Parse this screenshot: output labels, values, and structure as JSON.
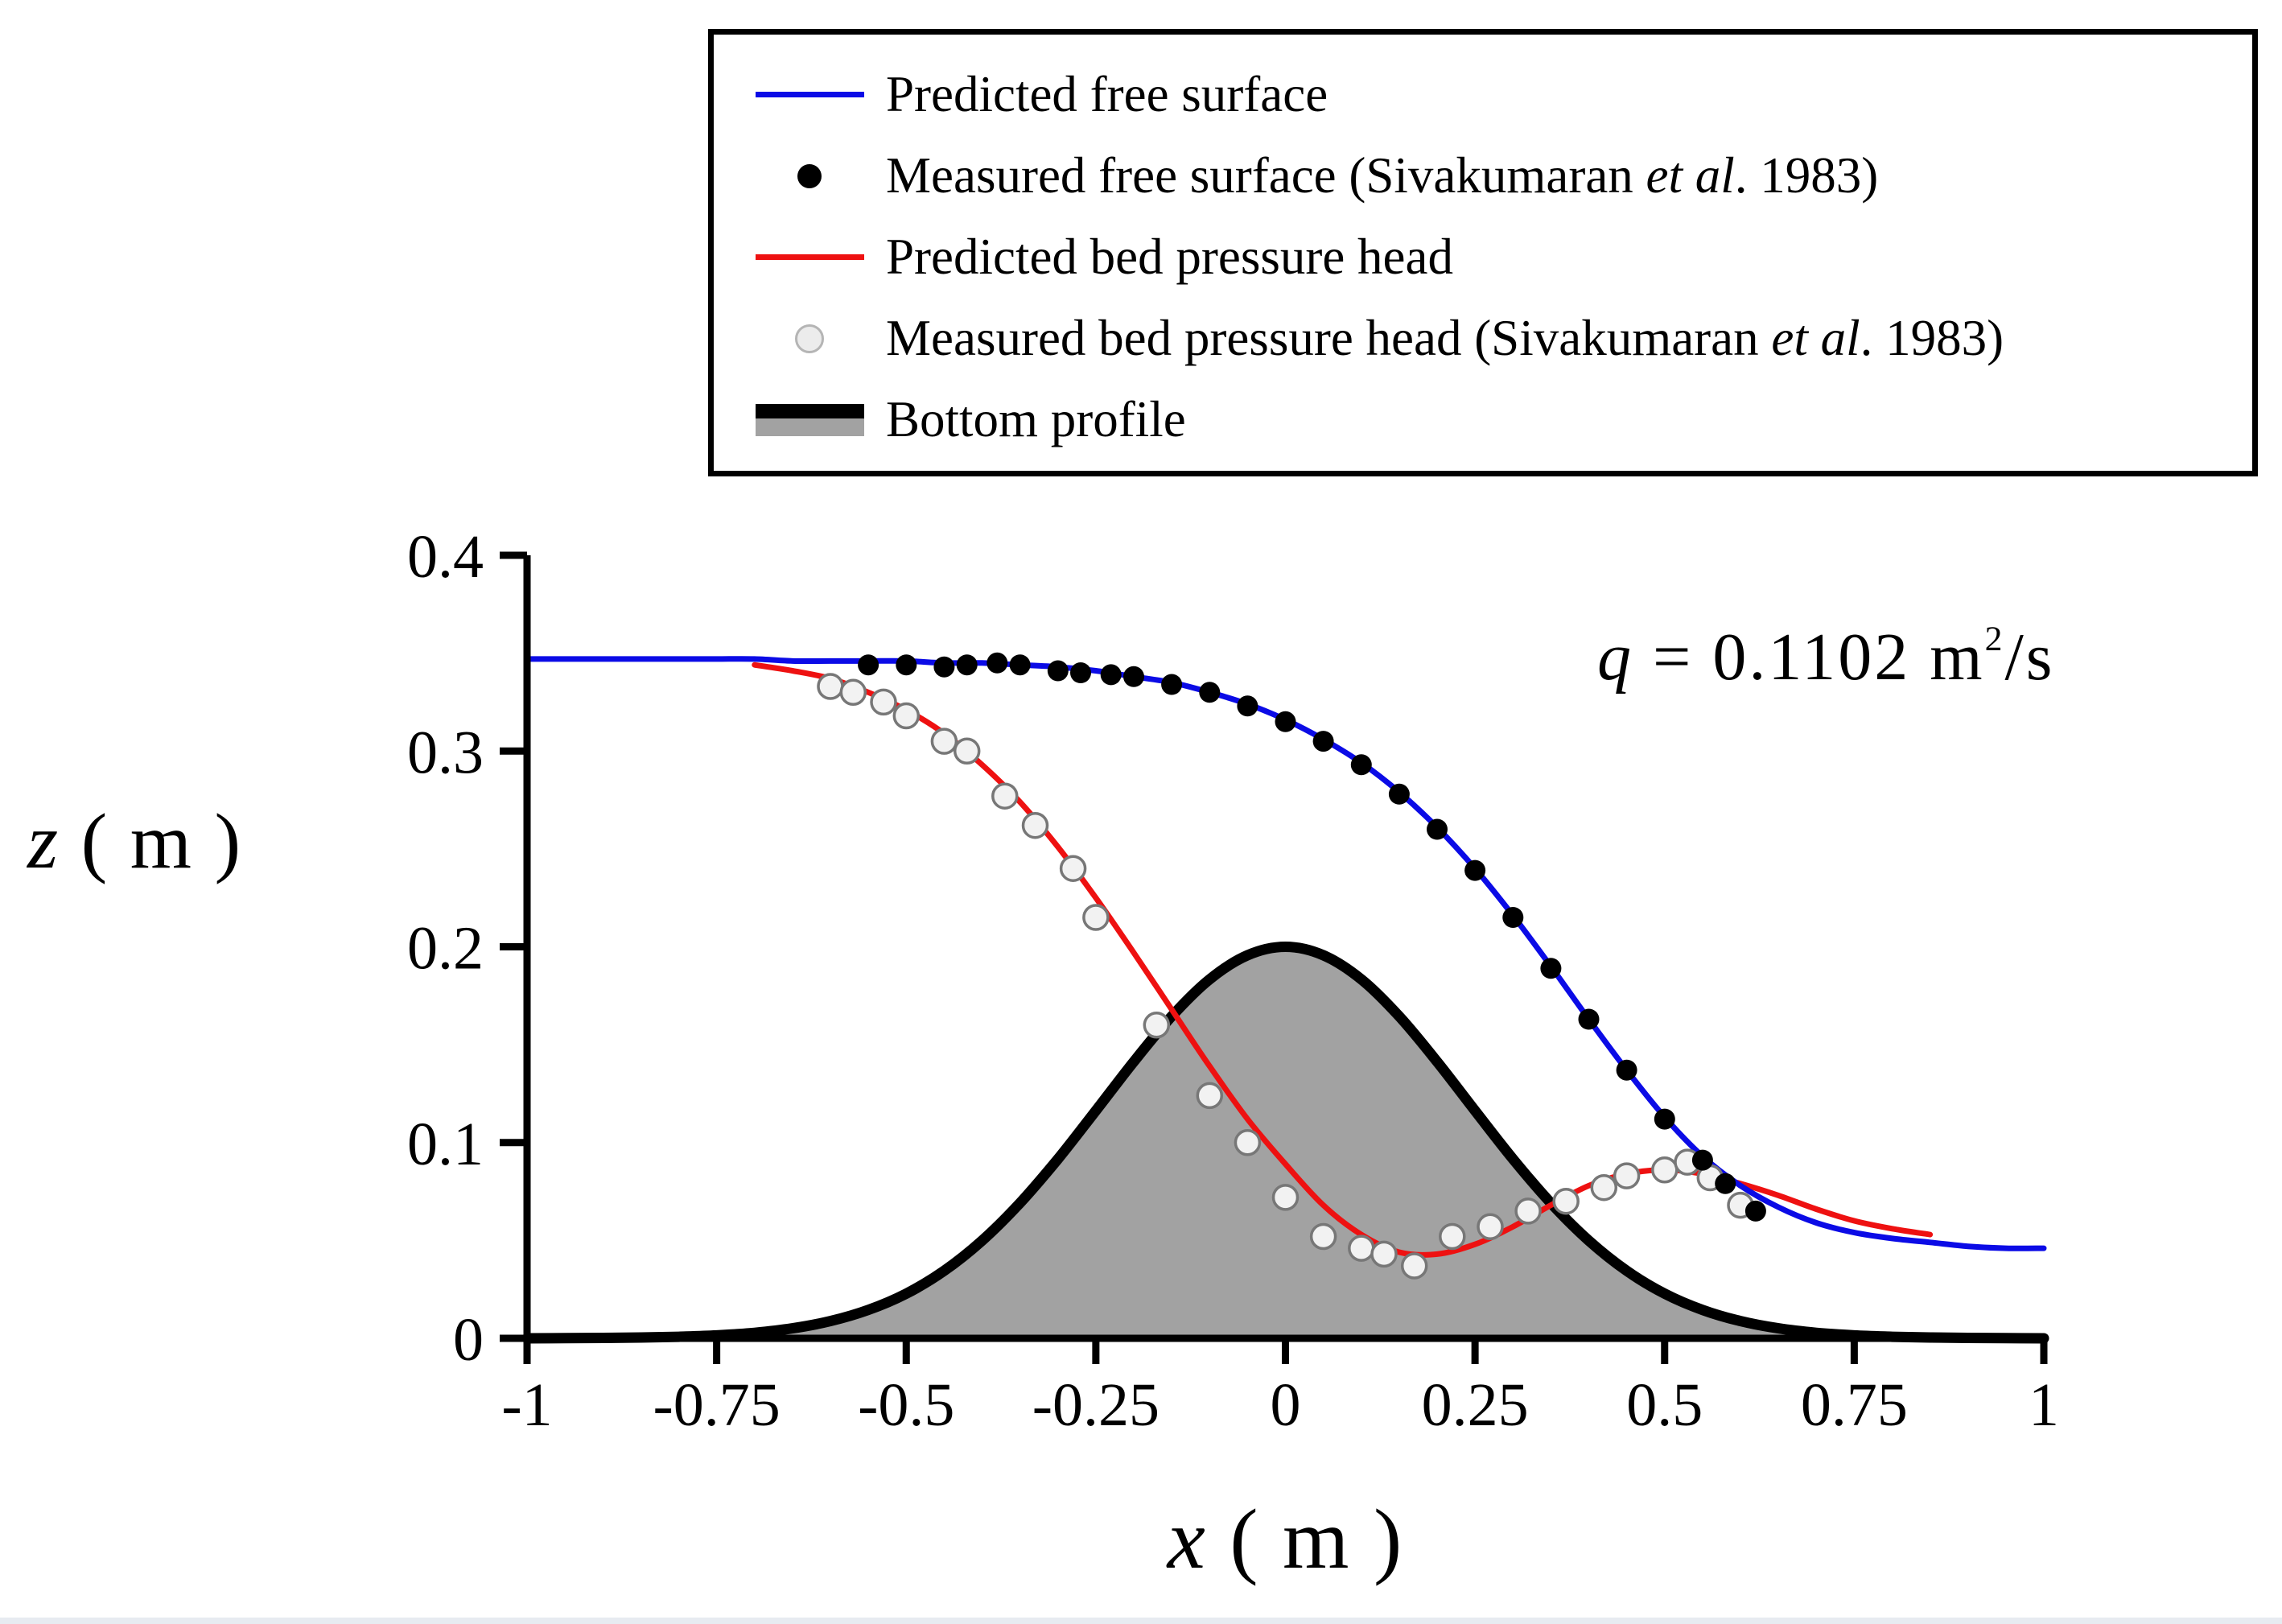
{
  "legend": {
    "items": [
      {
        "type": "line",
        "color": "#0b0be6",
        "fill": "",
        "stroke": "",
        "label_pre": "Predicted free surface",
        "label_it": "",
        "label_post": ""
      },
      {
        "type": "dot",
        "color": "#000000",
        "fill": "",
        "stroke": "",
        "label_pre": "Measured free surface (Sivakumaran ",
        "label_it": "et al",
        "label_post": ". 1983)"
      },
      {
        "type": "line",
        "color": "#ee1111",
        "fill": "",
        "stroke": "",
        "label_pre": "Predicted bed pressure head",
        "label_it": "",
        "label_post": ""
      },
      {
        "type": "dot",
        "color": "#ececec",
        "fill": "",
        "stroke": "#b5b5b5",
        "label_pre": "Measured bed pressure head (Sivakumaran ",
        "label_it": "et al",
        "label_post": ". 1983)"
      },
      {
        "type": "band",
        "color": "#000000",
        "fill": "#a2a2a2",
        "stroke": "",
        "label_pre": "Bottom profile",
        "label_it": "",
        "label_post": ""
      }
    ]
  },
  "chart_data": {
    "type": "line",
    "title": "",
    "xlabel": "x (m)",
    "ylabel": "z (m)",
    "xlabel_parts": [
      "x",
      " ( m )"
    ],
    "ylabel_parts": [
      "z",
      " ( m )"
    ],
    "annotation": "q = 0.1102 m²/s",
    "annotation_parts": [
      "q",
      " = 0.1102 m",
      "2",
      "/s"
    ],
    "xlim": [
      -1,
      1
    ],
    "ylim": [
      0,
      0.4
    ],
    "xticks": [
      -1,
      -0.75,
      -0.5,
      -0.25,
      0,
      0.25,
      0.5,
      0.75,
      1
    ],
    "xtick_labels": [
      "-1",
      "-0.75",
      "-0.5",
      "-0.25",
      "0",
      "0.25",
      "0.5",
      "0.75",
      "1"
    ],
    "yticks": [
      0,
      0.1,
      0.2,
      0.3,
      0.4
    ],
    "ytick_labels": [
      "0",
      "0.1",
      "0.2",
      "0.3",
      "0.4"
    ],
    "grid": false,
    "legend_position": "top",
    "series": [
      {
        "id": "bottom-profile",
        "name": "Bottom profile",
        "type": "area",
        "color": "#000000",
        "fill": "#a2a2a2",
        "x": [
          -1,
          -0.95,
          -0.9,
          -0.85,
          -0.8,
          -0.75,
          -0.7,
          -0.65,
          -0.6,
          -0.55,
          -0.5,
          -0.45,
          -0.4,
          -0.35,
          -0.3,
          -0.25,
          -0.2,
          -0.15,
          -0.1,
          -0.05,
          0,
          0.05,
          0.1,
          0.15,
          0.2,
          0.25,
          0.3,
          0.35,
          0.4,
          0.45,
          0.5,
          0.55,
          0.6,
          0.65,
          0.7,
          0.75,
          0.8,
          0.85,
          0.9,
          0.95,
          1
        ],
        "y": [
          0,
          0.0001,
          0.0002,
          0.0004,
          0.0008,
          0.0015,
          0.0028,
          0.0051,
          0.0088,
          0.0145,
          0.0228,
          0.0345,
          0.0499,
          0.0691,
          0.0916,
          0.1163,
          0.1413,
          0.1645,
          0.1834,
          0.1957,
          0.2,
          0.1957,
          0.1834,
          0.1645,
          0.1413,
          0.1163,
          0.0916,
          0.0691,
          0.0499,
          0.0345,
          0.0228,
          0.0145,
          0.0088,
          0.0051,
          0.0028,
          0.0015,
          0.0008,
          0.0004,
          0.0002,
          0.0001,
          0
        ]
      },
      {
        "id": "predicted-bed-pressure-head",
        "name": "Predicted bed pressure head",
        "type": "line",
        "color": "#ee1111",
        "x": [
          -0.7,
          -0.65,
          -0.6,
          -0.55,
          -0.5,
          -0.45,
          -0.4,
          -0.35,
          -0.3,
          -0.25,
          -0.2,
          -0.15,
          -0.1,
          -0.05,
          0,
          0.05,
          0.1,
          0.15,
          0.2,
          0.25,
          0.3,
          0.35,
          0.4,
          0.45,
          0.5,
          0.55,
          0.6,
          0.65,
          0.7,
          0.75,
          0.8,
          0.85
        ],
        "y": [
          0.344,
          0.341,
          0.337,
          0.33,
          0.321,
          0.309,
          0.293,
          0.274,
          0.251,
          0.225,
          0.197,
          0.168,
          0.139,
          0.112,
          0.089,
          0.068,
          0.053,
          0.044,
          0.043,
          0.048,
          0.057,
          0.068,
          0.078,
          0.084,
          0.086,
          0.084,
          0.079,
          0.073,
          0.066,
          0.06,
          0.056,
          0.053
        ]
      },
      {
        "id": "predicted-free-surface",
        "name": "Predicted free surface",
        "type": "line",
        "color": "#0b0be6",
        "x": [
          -1,
          -0.95,
          -0.9,
          -0.85,
          -0.8,
          -0.75,
          -0.7,
          -0.65,
          -0.6,
          -0.55,
          -0.5,
          -0.45,
          -0.4,
          -0.35,
          -0.3,
          -0.25,
          -0.2,
          -0.15,
          -0.1,
          -0.05,
          0,
          0.05,
          0.1,
          0.15,
          0.2,
          0.25,
          0.3,
          0.35,
          0.4,
          0.45,
          0.5,
          0.55,
          0.6,
          0.65,
          0.7,
          0.75,
          0.8,
          0.85,
          0.9,
          0.95,
          1
        ],
        "y": [
          0.347,
          0.347,
          0.347,
          0.347,
          0.347,
          0.347,
          0.347,
          0.346,
          0.346,
          0.346,
          0.346,
          0.345,
          0.345,
          0.344,
          0.343,
          0.341,
          0.338,
          0.335,
          0.33,
          0.324,
          0.316,
          0.306,
          0.294,
          0.279,
          0.261,
          0.24,
          0.216,
          0.19,
          0.163,
          0.137,
          0.113,
          0.093,
          0.078,
          0.067,
          0.059,
          0.054,
          0.051,
          0.049,
          0.047,
          0.046,
          0.046
        ]
      },
      {
        "id": "measured-bed-pressure-head",
        "name": "Measured bed pressure head (Sivakumaran et al. 1983)",
        "type": "scatter-open",
        "color": "#f2f2f2",
        "stroke": "#777777",
        "x": [
          -0.6,
          -0.57,
          -0.53,
          -0.5,
          -0.45,
          -0.42,
          -0.37,
          -0.33,
          -0.28,
          -0.25,
          -0.17,
          -0.1,
          -0.05,
          0,
          0.05,
          0.1,
          0.13,
          0.17,
          0.22,
          0.27,
          0.32,
          0.37,
          0.42,
          0.45,
          0.5,
          0.53,
          0.56,
          0.6
        ],
        "y": [
          0.333,
          0.33,
          0.325,
          0.318,
          0.305,
          0.3,
          0.277,
          0.262,
          0.24,
          0.215,
          0.16,
          0.124,
          0.1,
          0.072,
          0.052,
          0.046,
          0.043,
          0.037,
          0.052,
          0.057,
          0.065,
          0.07,
          0.077,
          0.083,
          0.086,
          0.09,
          0.082,
          0.068
        ]
      },
      {
        "id": "measured-free-surface",
        "name": "Measured free surface (Sivakumaran et al. 1983)",
        "type": "scatter",
        "color": "#000000",
        "stroke": "",
        "x": [
          -0.55,
          -0.5,
          -0.45,
          -0.42,
          -0.38,
          -0.35,
          -0.3,
          -0.27,
          -0.23,
          -0.2,
          -0.15,
          -0.1,
          -0.05,
          0,
          0.05,
          0.1,
          0.15,
          0.2,
          0.25,
          0.3,
          0.35,
          0.4,
          0.45,
          0.5,
          0.55,
          0.58,
          0.62
        ],
        "y": [
          0.344,
          0.344,
          0.343,
          0.344,
          0.345,
          0.344,
          0.341,
          0.34,
          0.339,
          0.338,
          0.334,
          0.33,
          0.323,
          0.315,
          0.305,
          0.293,
          0.278,
          0.26,
          0.239,
          0.215,
          0.189,
          0.163,
          0.137,
          0.112,
          0.091,
          0.079,
          0.065
        ]
      }
    ]
  }
}
